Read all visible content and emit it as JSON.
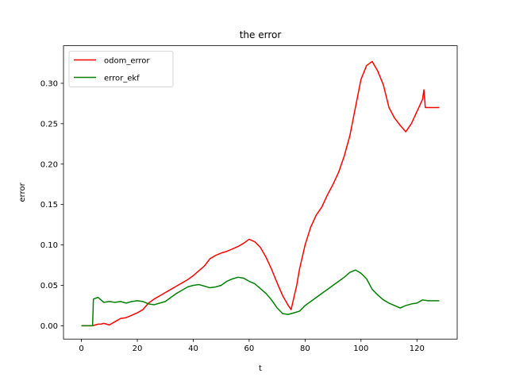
{
  "chart_data": {
    "type": "line",
    "title": "the error",
    "xlabel": "t",
    "ylabel": "error",
    "xlim": [
      -6.4,
      134.4
    ],
    "ylim": [
      -0.0165,
      0.3465
    ],
    "xticks": [
      0,
      20,
      40,
      60,
      80,
      100,
      120
    ],
    "xtick_labels": [
      "0",
      "20",
      "40",
      "60",
      "80",
      "100",
      "120"
    ],
    "yticks": [
      0.0,
      0.05,
      0.1,
      0.15,
      0.2,
      0.25,
      0.3
    ],
    "ytick_labels": [
      "0.00",
      "0.05",
      "0.10",
      "0.15",
      "0.20",
      "0.25",
      "0.30"
    ],
    "grid": false,
    "legend_position": "top-left",
    "series": [
      {
        "name": "odom_error",
        "color": "#ff0000",
        "x": [
          0,
          2,
          4,
          5,
          6,
          7,
          8,
          9,
          10,
          12,
          14,
          16,
          18,
          20,
          22,
          24,
          26,
          28,
          30,
          32,
          34,
          36,
          38,
          40,
          42,
          44,
          46,
          48,
          50,
          52,
          54,
          56,
          58,
          60,
          62,
          64,
          66,
          68,
          70,
          72,
          74,
          75,
          76,
          77,
          78,
          80,
          82,
          84,
          86,
          88,
          90,
          92,
          94,
          96,
          98,
          100,
          102,
          104,
          106,
          108,
          110,
          112,
          114,
          116,
          118,
          120,
          122,
          122.5,
          123,
          124,
          126,
          128
        ],
        "y": [
          0.0,
          0.0,
          0.0,
          0.001,
          0.002,
          0.002,
          0.003,
          0.002,
          0.001,
          0.005,
          0.009,
          0.01,
          0.013,
          0.016,
          0.02,
          0.028,
          0.033,
          0.037,
          0.041,
          0.045,
          0.049,
          0.053,
          0.057,
          0.062,
          0.068,
          0.074,
          0.083,
          0.087,
          0.09,
          0.092,
          0.095,
          0.098,
          0.102,
          0.107,
          0.104,
          0.097,
          0.085,
          0.07,
          0.053,
          0.037,
          0.025,
          0.02,
          0.035,
          0.05,
          0.07,
          0.1,
          0.122,
          0.137,
          0.147,
          0.162,
          0.175,
          0.19,
          0.21,
          0.235,
          0.27,
          0.305,
          0.322,
          0.327,
          0.315,
          0.298,
          0.27,
          0.257,
          0.248,
          0.24,
          0.25,
          0.265,
          0.28,
          0.292,
          0.27,
          0.27,
          0.27,
          0.27
        ]
      },
      {
        "name": "error_ekf",
        "color": "#008000",
        "x": [
          0,
          2,
          4,
          4.3,
          5,
          6,
          7,
          8,
          10,
          12,
          14,
          16,
          18,
          20,
          22,
          24,
          26,
          28,
          30,
          32,
          34,
          36,
          38,
          40,
          42,
          44,
          46,
          48,
          50,
          52,
          54,
          56,
          58,
          60,
          62,
          64,
          66,
          68,
          70,
          72,
          74,
          76,
          78,
          80,
          82,
          84,
          86,
          88,
          90,
          92,
          94,
          96,
          98,
          100,
          102,
          104,
          106,
          108,
          110,
          112,
          114,
          116,
          118,
          120,
          122,
          124,
          126,
          128
        ],
        "y": [
          0.0,
          0.0,
          0.0,
          0.033,
          0.034,
          0.035,
          0.032,
          0.029,
          0.03,
          0.029,
          0.03,
          0.028,
          0.03,
          0.031,
          0.03,
          0.027,
          0.026,
          0.028,
          0.03,
          0.035,
          0.04,
          0.044,
          0.048,
          0.05,
          0.051,
          0.049,
          0.047,
          0.048,
          0.05,
          0.055,
          0.058,
          0.06,
          0.059,
          0.055,
          0.052,
          0.046,
          0.04,
          0.032,
          0.022,
          0.015,
          0.014,
          0.016,
          0.018,
          0.025,
          0.03,
          0.035,
          0.04,
          0.045,
          0.05,
          0.055,
          0.06,
          0.066,
          0.069,
          0.065,
          0.058,
          0.045,
          0.038,
          0.032,
          0.028,
          0.025,
          0.022,
          0.025,
          0.027,
          0.028,
          0.032,
          0.031,
          0.031,
          0.031
        ]
      }
    ]
  }
}
